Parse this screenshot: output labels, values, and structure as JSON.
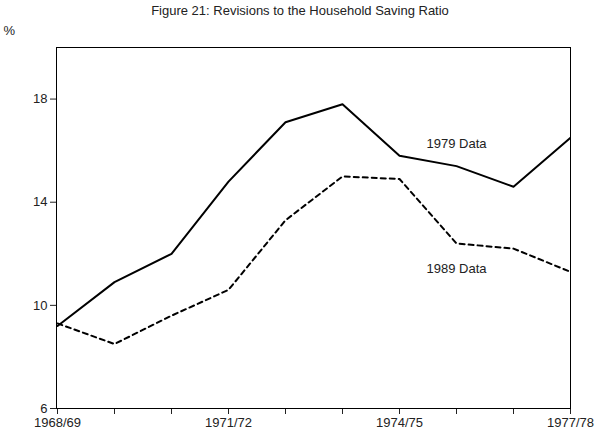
{
  "chart_data": {
    "type": "line",
    "title": "Figure 21: Revisions to the Household Saving Ratio",
    "y_label": "%",
    "categories": [
      "1968/69",
      null,
      null,
      "1971/72",
      null,
      null,
      "1974/75",
      null,
      null,
      "1977/78"
    ],
    "series": [
      {
        "name": "1979 Data",
        "color": "#000000",
        "line_style": "solid",
        "values": [
          9.2,
          10.9,
          12.0,
          14.8,
          17.1,
          17.8,
          15.8,
          15.4,
          14.6,
          16.5
        ]
      },
      {
        "name": "1989 Data",
        "color": "#000000",
        "line_style": "dashed",
        "values": [
          9.3,
          8.5,
          9.6,
          10.6,
          13.3,
          15.0,
          14.9,
          12.4,
          12.2,
          11.3
        ]
      }
    ],
    "ylim": [
      6,
      20
    ],
    "yticks": [
      6,
      10,
      14,
      18
    ],
    "grid": false
  }
}
